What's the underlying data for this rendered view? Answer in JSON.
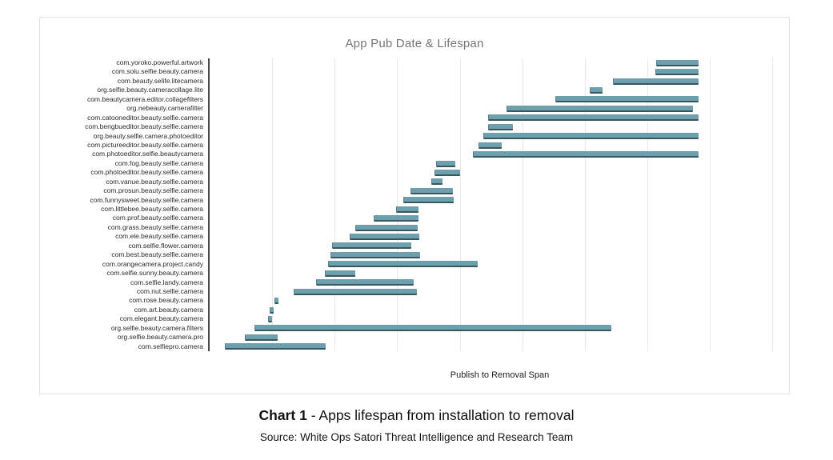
{
  "card": {
    "title": "App Pub Date & Lifespan",
    "xaxis_title": "Publish to Removal Span"
  },
  "caption": {
    "bold": "Chart 1",
    "rest": " - Apps lifespan from installation to removal",
    "source": "Source: White Ops Satori Threat Intelligence and Research Team"
  },
  "colors": {
    "bar_fill": "#6D9FAC",
    "bar_shadow": "#3A565F",
    "gridline": "#E9E9E9",
    "axis_line": "#494949",
    "title_text": "#757575",
    "label_text": "#2B2B2B"
  },
  "chart_data": {
    "type": "bar",
    "subtype": "horizontal-span (gantt-style publish-to-removal spans)",
    "title": "App Pub Date & Lifespan",
    "xlabel": "Publish to Removal Span",
    "ylabel": "",
    "legend": "none",
    "grid": true,
    "x_axis_tick_labels_visible": false,
    "x_units": "percent of plot width (chart shows no numeric/date tick labels)",
    "gridline_positions_pct": [
      10.7,
      21.4,
      32.1,
      42.9,
      53.6,
      64.3,
      75.0,
      85.7,
      96.4
    ],
    "apps": [
      {
        "label": "com.yoroko.powerful.artwork",
        "start": 76.5,
        "end": 83.7
      },
      {
        "label": "com.solu.selfie.beauty.camera",
        "start": 76.4,
        "end": 83.7
      },
      {
        "label": "com.beauty.selife.litecamera",
        "start": 69.1,
        "end": 83.7
      },
      {
        "label": "org.selfie.beauty.cameracollage.lite",
        "start": 65.2,
        "end": 67.2
      },
      {
        "label": "com.beautycamera.editor.collagefilters",
        "start": 59.3,
        "end": 83.7
      },
      {
        "label": "org.nebeauty.camerafilter",
        "start": 50.9,
        "end": 82.7
      },
      {
        "label": "com.catooneditor.beauty.selfie.camera",
        "start": 47.7,
        "end": 83.7
      },
      {
        "label": "com.bengbueditor.beauty.selfie.camera",
        "start": 47.7,
        "end": 51.9
      },
      {
        "label": "org.beauty.selfie.camera.photoeditor",
        "start": 46.9,
        "end": 83.7
      },
      {
        "label": "com.pictureeditor.beauty.selfie.camera",
        "start": 46.1,
        "end": 49.9
      },
      {
        "label": "com.photoeditor.selfie.beautycamera",
        "start": 45.1,
        "end": 83.7
      },
      {
        "label": "com.fog.beauty.selfie.camera",
        "start": 38.8,
        "end": 42.0
      },
      {
        "label": "com.photoeditor.beauty.selfie.camera",
        "start": 38.5,
        "end": 42.8
      },
      {
        "label": "com.vanue.beauty.selfie.camera",
        "start": 38.0,
        "end": 39.8
      },
      {
        "label": "com.prosun.beauty.selfie.camera",
        "start": 34.4,
        "end": 41.6
      },
      {
        "label": "com.funnysweet.beauty.selfie.camera",
        "start": 33.2,
        "end": 41.7
      },
      {
        "label": "com.littlebee.beauty.selfie.camera",
        "start": 32.0,
        "end": 35.7
      },
      {
        "label": "com.prof.beauty.selfie.camera",
        "start": 28.1,
        "end": 35.7
      },
      {
        "label": "com.grass.beauty.selfie.camera",
        "start": 25.0,
        "end": 35.5
      },
      {
        "label": "com.ele.beauty.selfie.camera",
        "start": 24.0,
        "end": 35.8
      },
      {
        "label": "com.selfie.flower.camera",
        "start": 21.0,
        "end": 34.4
      },
      {
        "label": "com.best.beauty.selfie.camera",
        "start": 20.7,
        "end": 35.9
      },
      {
        "label": "com.orangecamera.project.candy",
        "start": 20.3,
        "end": 45.8
      },
      {
        "label": "com.selfie.sunny.beauty.camera",
        "start": 19.8,
        "end": 24.8
      },
      {
        "label": "com.selfie.landy.camera",
        "start": 18.2,
        "end": 34.8
      },
      {
        "label": "com.nut.selfie.camera",
        "start": 14.4,
        "end": 35.4
      },
      {
        "label": "com.rose.beauty.camera",
        "start": 11.1,
        "end": 11.6
      },
      {
        "label": "com.art.beauty.camera",
        "start": 10.3,
        "end": 10.9
      },
      {
        "label": "com.elegant.beauty.camera",
        "start": 10.0,
        "end": 10.6
      },
      {
        "label": "org.selfie.beauty.camera.filters",
        "start": 7.7,
        "end": 68.7
      },
      {
        "label": "org.selfie.beauty.camera.pro",
        "start": 6.0,
        "end": 11.5
      },
      {
        "label": "com.selfiepro.camera",
        "start": 2.6,
        "end": 19.8
      }
    ]
  }
}
